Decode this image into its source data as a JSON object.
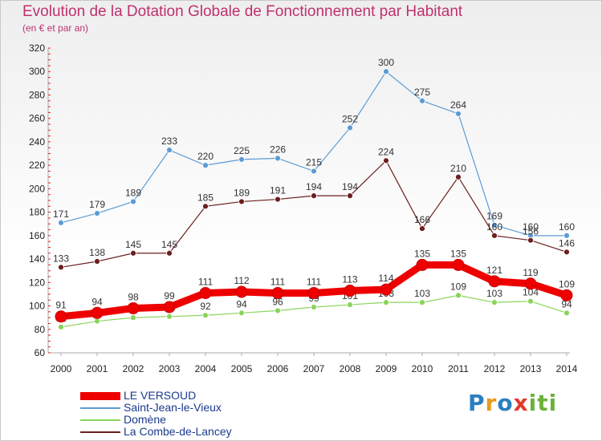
{
  "header": {
    "title": "Evolution de la Dotation Globale de Fonctionnement par Habitant",
    "subtitle": "(en € et par an)"
  },
  "logo": {
    "text": "Proxiti",
    "colors": [
      "#2a7fc1",
      "#e69a1f",
      "#e23a2a",
      "#6bb23b"
    ]
  },
  "chart_data": {
    "type": "line",
    "x": [
      "2000",
      "2001",
      "2002",
      "2003",
      "2004",
      "2005",
      "2006",
      "2007",
      "2008",
      "2009",
      "2010",
      "2011",
      "2012",
      "2013",
      "2014"
    ],
    "ylim": [
      60,
      320
    ],
    "yticks": [
      60,
      80,
      100,
      120,
      140,
      160,
      180,
      200,
      220,
      240,
      260,
      280,
      300,
      320
    ],
    "grid": false,
    "legend": "bottom-left",
    "series": [
      {
        "name": "LE VERSOUD",
        "color": "#ee0000",
        "values": [
          91,
          94,
          98,
          99,
          111,
          112,
          111,
          111,
          113,
          114,
          135,
          135,
          121,
          119,
          109
        ]
      },
      {
        "name": "Saint-Jean-le-Vieux",
        "color": "#5c9bd5",
        "values": [
          171,
          179,
          189,
          233,
          220,
          225,
          226,
          215,
          252,
          300,
          275,
          264,
          169,
          160,
          160
        ]
      },
      {
        "name": "Domène",
        "color": "#8ad45a",
        "values": [
          82,
          87,
          90,
          91,
          92,
          94,
          96,
          99,
          101,
          103,
          103,
          109,
          103,
          104,
          94
        ]
      },
      {
        "name": "La Combe-de-Lancey",
        "color": "#6b1f1f",
        "values": [
          133,
          138,
          145,
          145,
          185,
          189,
          191,
          194,
          194,
          224,
          166,
          210,
          160,
          156,
          146
        ]
      }
    ]
  }
}
